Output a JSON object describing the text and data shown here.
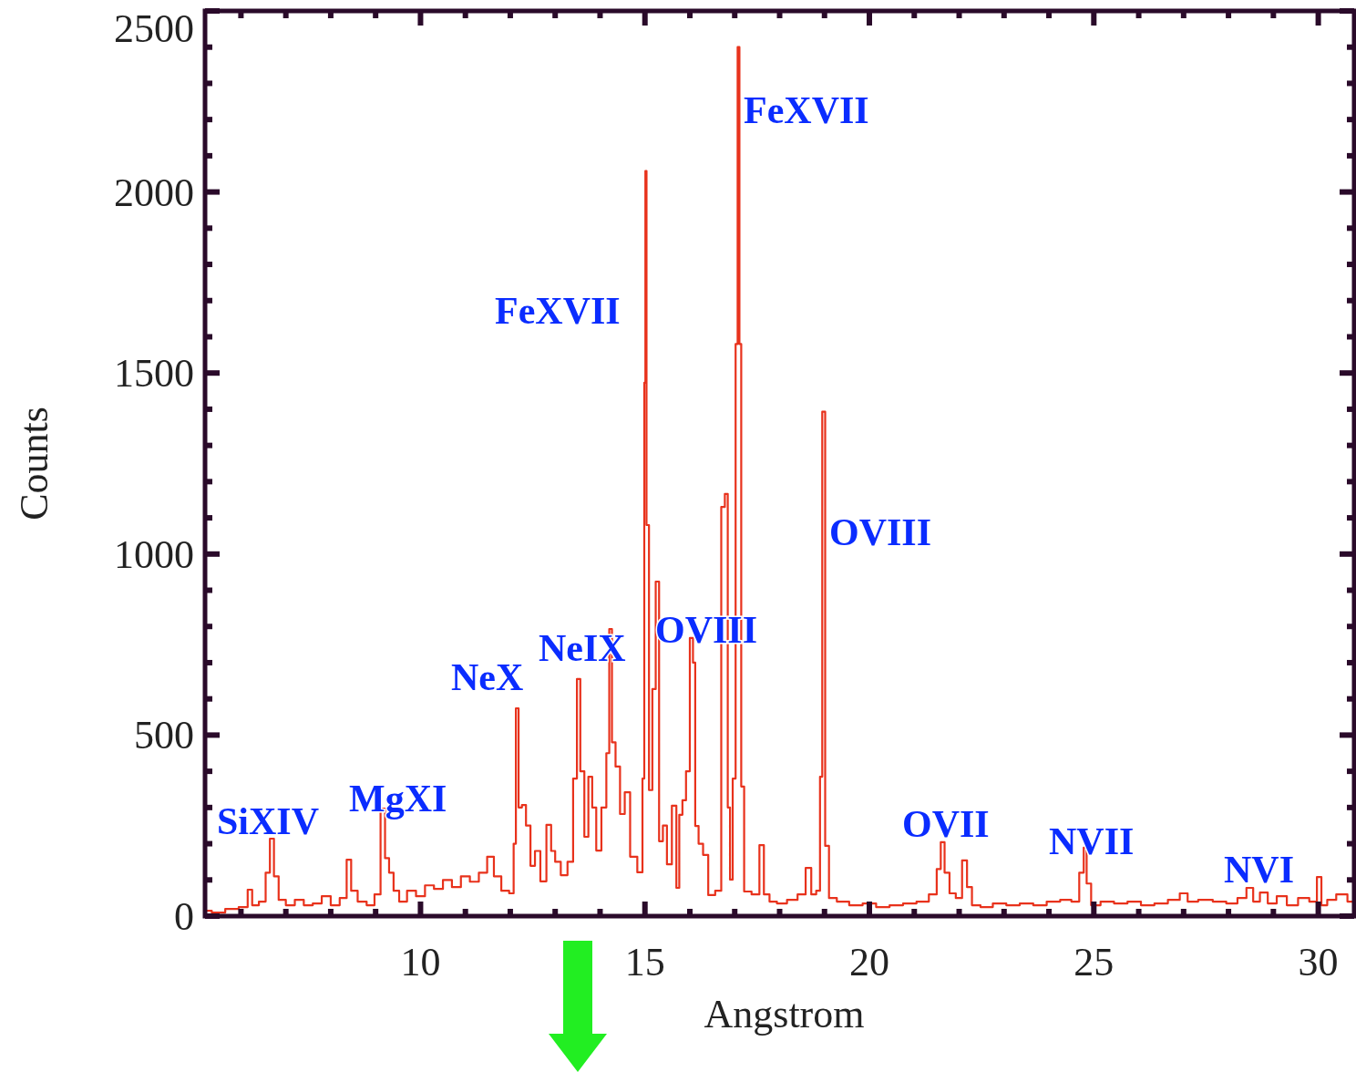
{
  "chart_data": {
    "type": "step",
    "xlabel": "Angstrom",
    "ylabel": "Counts",
    "xlim": [
      5.2,
      30.8
    ],
    "ylim": [
      0,
      2500
    ],
    "xticks": [
      {
        "value": 6,
        "label": null
      },
      {
        "value": 7,
        "label": null
      },
      {
        "value": 8,
        "label": null
      },
      {
        "value": 9,
        "label": null
      },
      10,
      {
        "value": 11,
        "label": null
      },
      {
        "value": 12,
        "label": null
      },
      {
        "value": 13,
        "label": null
      },
      {
        "value": 14,
        "label": null
      },
      15,
      {
        "value": 16,
        "label": null
      },
      {
        "value": 17,
        "label": null
      },
      {
        "value": 18,
        "label": null
      },
      {
        "value": 19,
        "label": null
      },
      20,
      {
        "value": 21,
        "label": null
      },
      {
        "value": 22,
        "label": null
      },
      {
        "value": 23,
        "label": null
      },
      {
        "value": 24,
        "label": null
      },
      25,
      {
        "value": 26,
        "label": null
      },
      {
        "value": 27,
        "label": null
      },
      {
        "value": 28,
        "label": null
      },
      {
        "value": 29,
        "label": null
      },
      30
    ],
    "yticks": [
      0,
      {
        "value": 100,
        "label": null
      },
      {
        "value": 200,
        "label": null
      },
      {
        "value": 300,
        "label": null
      },
      {
        "value": 400,
        "label": null
      },
      500,
      {
        "value": 600,
        "label": null
      },
      {
        "value": 700,
        "label": null
      },
      {
        "value": 800,
        "label": null
      },
      {
        "value": 900,
        "label": null
      },
      1000,
      {
        "value": 1100,
        "label": null
      },
      {
        "value": 1200,
        "label": null
      },
      {
        "value": 1300,
        "label": null
      },
      {
        "value": 1400,
        "label": null
      },
      1500,
      {
        "value": 1600,
        "label": null
      },
      {
        "value": 1700,
        "label": null
      },
      {
        "value": 1800,
        "label": null
      },
      {
        "value": 1900,
        "label": null
      },
      2000,
      {
        "value": 2100,
        "label": null
      },
      {
        "value": 2200,
        "label": null
      },
      {
        "value": 2300,
        "label": null
      },
      {
        "value": 2400,
        "label": null
      },
      2500
    ],
    "grid": false,
    "series": [
      {
        "color": "#e8321c",
        "x": [
          5.2,
          5.5,
          5.8,
          6.1,
          6.2,
          6.3,
          6.5,
          6.6,
          6.69,
          6.78,
          6.9,
          7.1,
          7.3,
          7.5,
          7.7,
          7.9,
          8.1,
          8.3,
          8.41,
          8.5,
          8.7,
          8.9,
          9.05,
          9.17,
          9.25,
          9.35,
          9.45,
          9.6,
          9.8,
          10.0,
          10.2,
          10.4,
          10.6,
          10.8,
          11.0,
          11.2,
          11.4,
          11.57,
          11.7,
          11.9,
          12.05,
          12.1,
          12.15,
          12.22,
          12.3,
          12.4,
          12.5,
          12.6,
          12.74,
          12.87,
          12.95,
          13.05,
          13.2,
          13.35,
          13.45,
          13.52,
          13.6,
          13.7,
          13.78,
          13.87,
          13.96,
          14.1,
          14.18,
          14.23,
          14.3,
          14.39,
          14.5,
          14.6,
          14.74,
          14.92,
          14.97,
          15.0,
          15.02,
          15.05,
          15.13,
          15.2,
          15.28,
          15.35,
          15.45,
          15.53,
          15.67,
          15.73,
          15.8,
          15.87,
          15.96,
          16.04,
          16.1,
          16.14,
          16.25,
          16.34,
          16.48,
          16.65,
          16.75,
          16.81,
          16.88,
          16.91,
          17.0,
          17.04,
          17.09,
          17.12,
          17.17,
          17.25,
          17.5,
          17.6,
          17.7,
          17.85,
          18.03,
          18.3,
          18.5,
          18.66,
          18.75,
          18.88,
          18.92,
          18.98,
          19.05,
          19.15,
          19.4,
          19.7,
          20.0,
          20.3,
          20.6,
          20.9,
          21.2,
          21.45,
          21.55,
          21.63,
          21.72,
          21.85,
          22.0,
          22.13,
          22.22,
          22.35,
          22.6,
          22.9,
          23.2,
          23.5,
          23.8,
          24.1,
          24.4,
          24.6,
          24.75,
          24.8,
          24.88,
          25.0,
          25.3,
          25.6,
          25.9,
          26.2,
          26.5,
          26.8,
          27.03,
          27.15,
          27.5,
          27.8,
          28.1,
          28.3,
          28.5,
          28.6,
          28.8,
          28.95,
          29.2,
          29.4,
          29.7,
          29.9,
          30.04,
          30.1,
          30.3,
          30.5,
          30.8
        ],
        "values": [
          15,
          10,
          20,
          25,
          73,
          30,
          40,
          120,
          214,
          110,
          45,
          30,
          45,
          30,
          35,
          55,
          30,
          50,
          156,
          70,
          40,
          30,
          60,
          297,
          160,
          120,
          70,
          40,
          70,
          55,
          85,
          75,
          100,
          80,
          110,
          95,
          120,
          164,
          110,
          70,
          63,
          200,
          574,
          300,
          307,
          250,
          139,
          180,
          96,
          252,
          180,
          150,
          113,
          150,
          380,
          655,
          400,
          219,
          385,
          300,
          181,
          300,
          450,
          793,
          480,
          413,
          282,
          342,
          164,
          121,
          380,
          1473,
          2058,
          1080,
          348,
          627,
          924,
          207,
          250,
          143,
          305,
          78,
          280,
          320,
          400,
          768,
          700,
          249,
          200,
          169,
          58,
          70,
          1130,
          1166,
          300,
          101,
          380,
          1580,
          2400,
          1580,
          358,
          68,
          60,
          196,
          60,
          40,
          35,
          45,
          60,
          133,
          60,
          70,
          385,
          1393,
          194,
          50,
          40,
          30,
          35,
          25,
          30,
          35,
          40,
          60,
          130,
          204,
          120,
          63,
          50,
          154,
          80,
          30,
          25,
          35,
          30,
          35,
          30,
          40,
          45,
          40,
          120,
          189,
          90,
          30,
          40,
          35,
          40,
          30,
          35,
          45,
          63,
          40,
          45,
          40,
          35,
          50,
          78,
          40,
          65,
          35,
          55,
          30,
          50,
          40,
          108,
          30,
          45,
          60,
          40
        ]
      }
    ],
    "annotations": [
      "SiXIV",
      "MgXI",
      "NeX",
      "NeIX",
      "FeXVII",
      "OVIII",
      "FeXVII",
      "OVIII",
      "OVII",
      "NVII",
      "NVI"
    ]
  }
}
